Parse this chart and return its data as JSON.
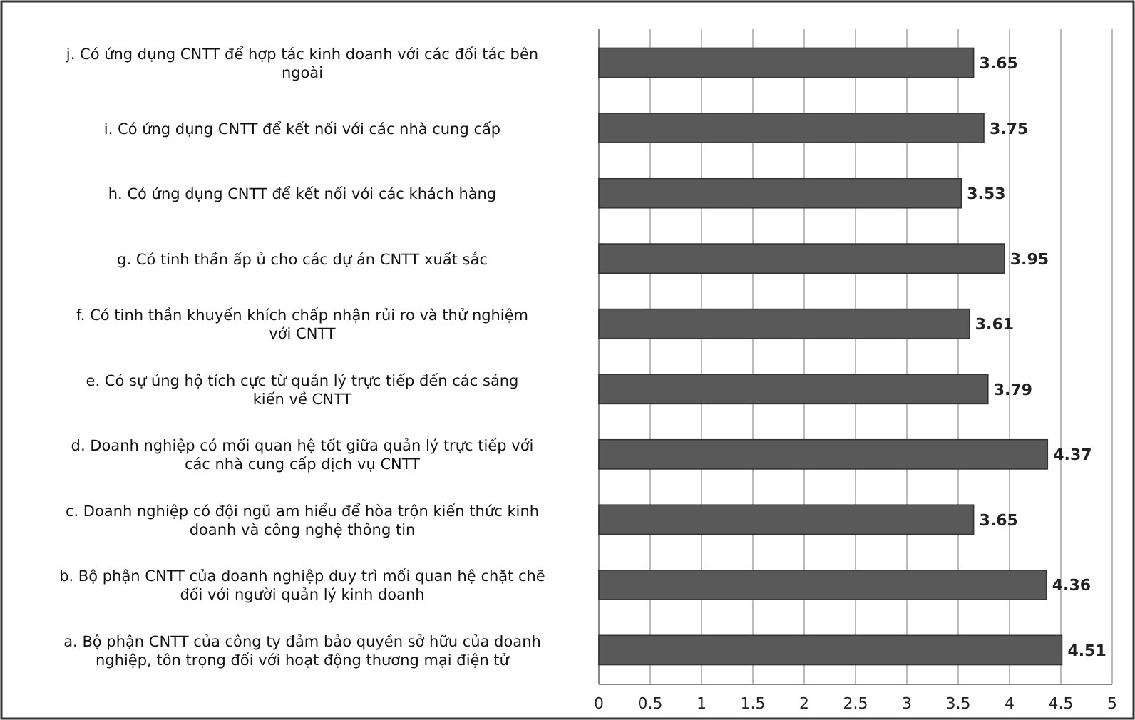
{
  "chart_data": {
    "type": "bar",
    "orientation": "horizontal",
    "categories": [
      "j. Có ứng dụng CNTT để hợp tác kinh doanh với các đối tác bên ngoài",
      "i. Có ứng dụng CNTT để kết nối với các nhà cung cấp",
      "h. Có ứng dụng CNTT để kết nối với các khách hàng",
      "g. Có tinh thần ấp ủ cho các dự án CNTT xuất sắc",
      "f. Có tinh thần khuyến khích chấp nhận rủi ro và thử nghiệm với CNTT",
      "e. Có sự ủng hộ tích cực từ quản lý trực tiếp đến các sáng kiến về CNTT",
      "d. Doanh nghiệp có mối quan hệ tốt giữa quản lý trực tiếp với các nhà cung cấp dịch vụ CNTT",
      "c. Doanh nghiệp có đội ngũ am hiểu để hòa trộn kiến thức kinh doanh và công nghệ thông tin",
      "b. Bộ phận CNTT của doanh nghiệp duy trì mối quan hệ chặt chẽ đối với người quản lý kinh doanh",
      "a. Bộ phận CNTT của công ty đảm bảo quyền sở hữu của doanh nghiệp, tôn trọng đối với hoạt động thương mại điện tử"
    ],
    "values": [
      3.65,
      3.75,
      3.53,
      3.95,
      3.61,
      3.79,
      4.37,
      3.65,
      4.36,
      4.51
    ],
    "color": "#595959",
    "xlim": [
      0,
      5
    ],
    "xticks": [
      0,
      0.5,
      1,
      1.5,
      2,
      2.5,
      3,
      3.5,
      4,
      4.5,
      5
    ],
    "grid": "x",
    "data_labels": true
  }
}
